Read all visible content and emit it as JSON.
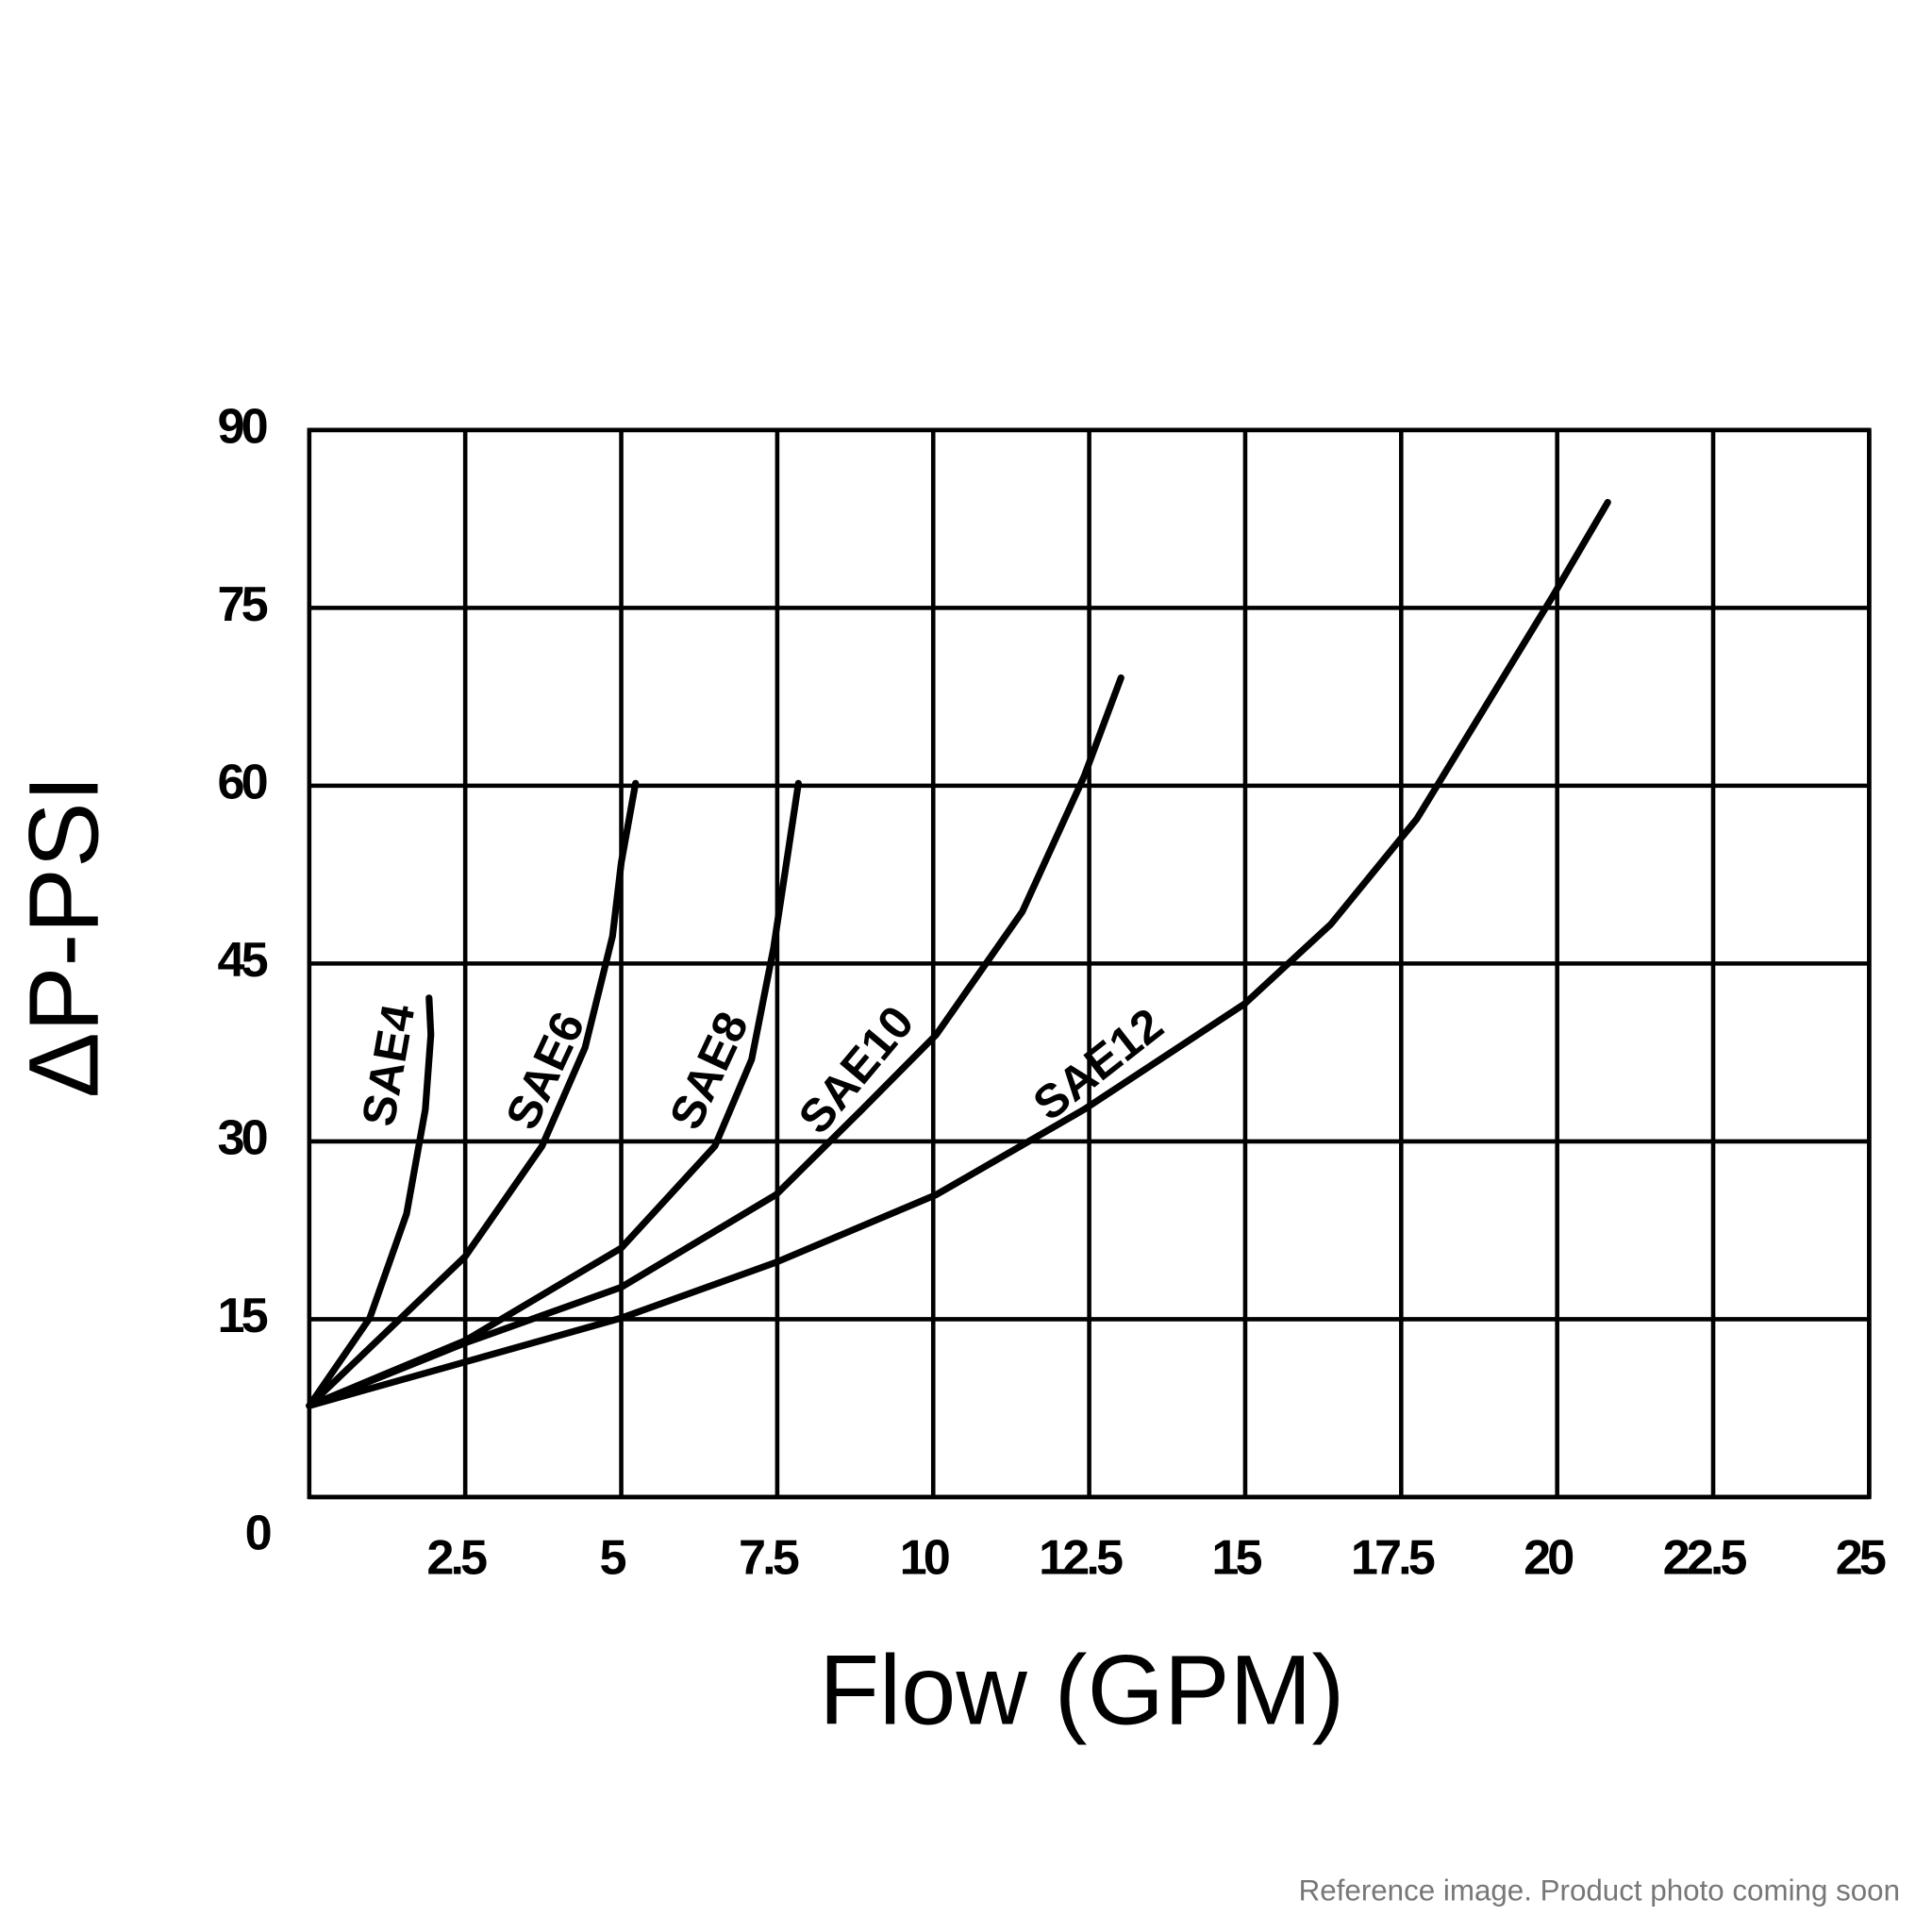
{
  "chart_data": {
    "type": "line",
    "xlabel": "Flow (GPM)",
    "ylabel": "ΔP-PSI",
    "xlim": [
      0,
      25
    ],
    "ylim": [
      0,
      90
    ],
    "xticks": [
      2.5,
      5,
      7.5,
      10,
      12.5,
      15,
      17.5,
      20,
      22.5,
      25
    ],
    "yticks": [
      0,
      15,
      30,
      45,
      60,
      75,
      90
    ],
    "grid": true,
    "series": [
      {
        "name": "SAE4",
        "color": "#000000",
        "x": [
          0,
          0.97,
          1.56,
          1.86,
          1.95,
          1.92
        ],
        "values": [
          7.7,
          15.1,
          23.9,
          32.7,
          39,
          42.1
        ]
      },
      {
        "name": "SAE6",
        "color": "#000000",
        "x": [
          0,
          2.5,
          3.73,
          4.42,
          4.86,
          5.0,
          5.23
        ],
        "values": [
          7.7,
          20.3,
          29.6,
          37.9,
          47.3,
          53.5,
          60.2
        ]
      },
      {
        "name": "SAE8",
        "color": "#000000",
        "x": [
          0,
          2.5,
          5,
          6.5,
          7.09,
          7.44,
          7.68,
          7.84
        ],
        "values": [
          7.7,
          13.2,
          21,
          29.6,
          36.9,
          46.3,
          54.6,
          60.2
        ]
      },
      {
        "name": "SAE10",
        "color": "#000000",
        "x": [
          0,
          2.5,
          5,
          7.48,
          8.86,
          10.05,
          11.43,
          12.42,
          13.01
        ],
        "values": [
          7.7,
          13,
          17.7,
          25.5,
          32.7,
          39,
          49.4,
          60.8,
          69.1
        ]
      },
      {
        "name": "SAE12",
        "color": "#000000",
        "x": [
          0,
          2.5,
          5,
          7.48,
          10.05,
          12.42,
          14.99,
          16.37,
          17.75,
          19.92,
          20.81
        ],
        "values": [
          7.7,
          11.4,
          15.1,
          19.8,
          25.5,
          32.7,
          41.6,
          48.3,
          57.2,
          75.9,
          83.9
        ]
      }
    ]
  },
  "footer": "Reference image. Product photo coming soon"
}
